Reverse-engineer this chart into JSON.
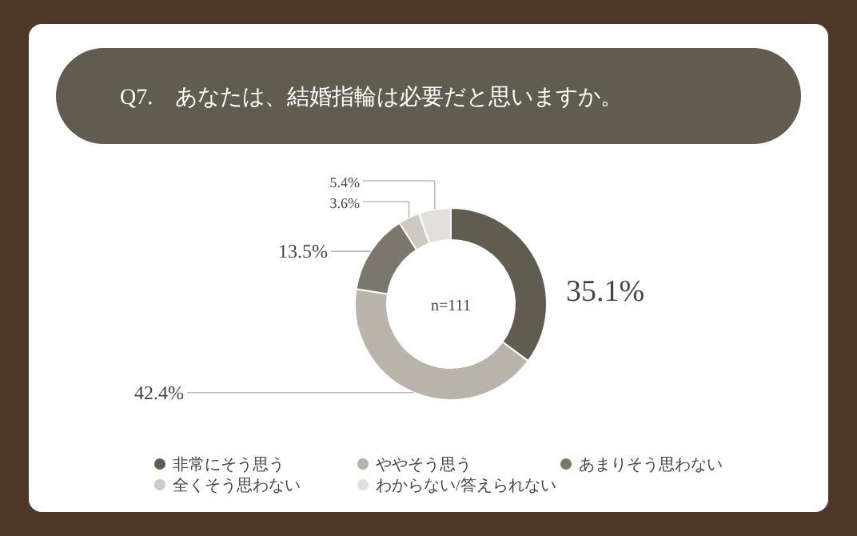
{
  "chart_data": {
    "type": "donut",
    "title": "Q7.　あなたは、結婚指輪は必要だと思いますか。",
    "categories": [
      "非常にそう思う",
      "ややそう思う",
      "あまりそう思わない",
      "全くそう思わない",
      "わからない/答えられない"
    ],
    "values": [
      35.1,
      42.4,
      13.5,
      3.6,
      5.4
    ],
    "colors": [
      "#605c4f",
      "#b8b4aa",
      "#7b776c",
      "#cecac3",
      "#e3e0db"
    ],
    "annotations": [
      "n=111"
    ],
    "legend": "bottom",
    "value_labels": [
      "35.1%",
      "42.4%",
      "13.5%",
      "3.6%",
      "5.4%"
    ]
  }
}
